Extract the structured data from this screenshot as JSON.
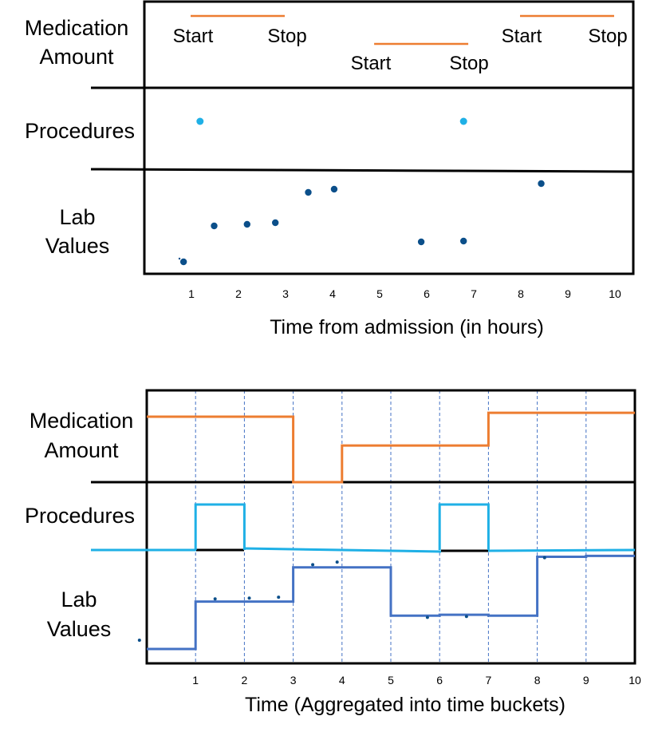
{
  "colors": {
    "medication": "#ed7d31",
    "procedure": "#1fb0e6",
    "lab_dot": "#0b4f8a",
    "lab_line": "#4472c4",
    "frame": "#000000",
    "grid": "#4472c4"
  },
  "top_panel": {
    "row_labels": {
      "medication": [
        "Medication",
        "Amount"
      ],
      "procedures": "Procedures",
      "lab": [
        "Lab",
        "Values"
      ]
    },
    "x_axis_title": "Time from admission (in hours)",
    "ticks": [
      "1",
      "2",
      "3",
      "4",
      "5",
      "6",
      "7",
      "8",
      "9",
      "10"
    ],
    "medication_events": [
      {
        "start_label": "Start",
        "stop_label": "Stop",
        "start": 1.0,
        "stop": 3.0
      },
      {
        "start_label": "Start",
        "stop_label": "Stop",
        "start": 4.9,
        "stop": 6.9
      },
      {
        "start_label": "Start",
        "stop_label": "Stop",
        "start": 8.0,
        "stop": 10.0
      }
    ],
    "procedure_events": [
      1.2,
      6.8
    ],
    "lab_points": [
      {
        "t": 0.85,
        "v": 0.05
      },
      {
        "t": 1.5,
        "v": 0.5
      },
      {
        "t": 2.2,
        "v": 0.52
      },
      {
        "t": 2.8,
        "v": 0.54
      },
      {
        "t": 3.5,
        "v": 0.92
      },
      {
        "t": 4.05,
        "v": 0.96
      },
      {
        "t": 5.9,
        "v": 0.3
      },
      {
        "t": 6.8,
        "v": 0.31
      },
      {
        "t": 8.45,
        "v": 1.03
      }
    ]
  },
  "bottom_panel": {
    "row_labels": {
      "medication": [
        "Medication",
        "Amount"
      ],
      "procedures": "Procedures",
      "lab": [
        "Lab",
        "Values"
      ]
    },
    "x_axis_title": "Time (Aggregated into time buckets)",
    "ticks": [
      "1",
      "2",
      "3",
      "4",
      "5",
      "6",
      "7",
      "8",
      "9",
      "10"
    ],
    "medication_steps": [
      {
        "from": 0,
        "to": 3,
        "level": 1.0
      },
      {
        "from": 3,
        "to": 4,
        "level": 0.0
      },
      {
        "from": 4,
        "to": 7,
        "level": 0.56
      },
      {
        "from": 7,
        "to": 10,
        "level": 1.06
      }
    ],
    "procedure_pulses": [
      {
        "from": 1,
        "to": 2
      },
      {
        "from": 6,
        "to": 7
      }
    ],
    "lab_steps": [
      {
        "from": 0,
        "to": 1,
        "level": 0.0
      },
      {
        "from": 1,
        "to": 3,
        "level": 0.54
      },
      {
        "from": 3,
        "to": 5,
        "level": 0.93
      },
      {
        "from": 5,
        "to": 6,
        "level": 0.38
      },
      {
        "from": 6,
        "to": 7,
        "level": 0.39
      },
      {
        "from": 7,
        "to": 8,
        "level": 0.38
      },
      {
        "from": 8,
        "to": 9,
        "level": 1.05
      },
      {
        "from": 9,
        "to": 10,
        "level": 1.06
      }
    ],
    "lab_points": [
      {
        "t": -0.15,
        "v": 0.1
      },
      {
        "t": 1.4,
        "v": 0.57
      },
      {
        "t": 2.1,
        "v": 0.58
      },
      {
        "t": 2.7,
        "v": 0.59
      },
      {
        "t": 3.4,
        "v": 0.96
      },
      {
        "t": 3.9,
        "v": 0.99
      },
      {
        "t": 5.75,
        "v": 0.36
      },
      {
        "t": 6.55,
        "v": 0.37
      },
      {
        "t": 8.15,
        "v": 1.04
      }
    ]
  }
}
